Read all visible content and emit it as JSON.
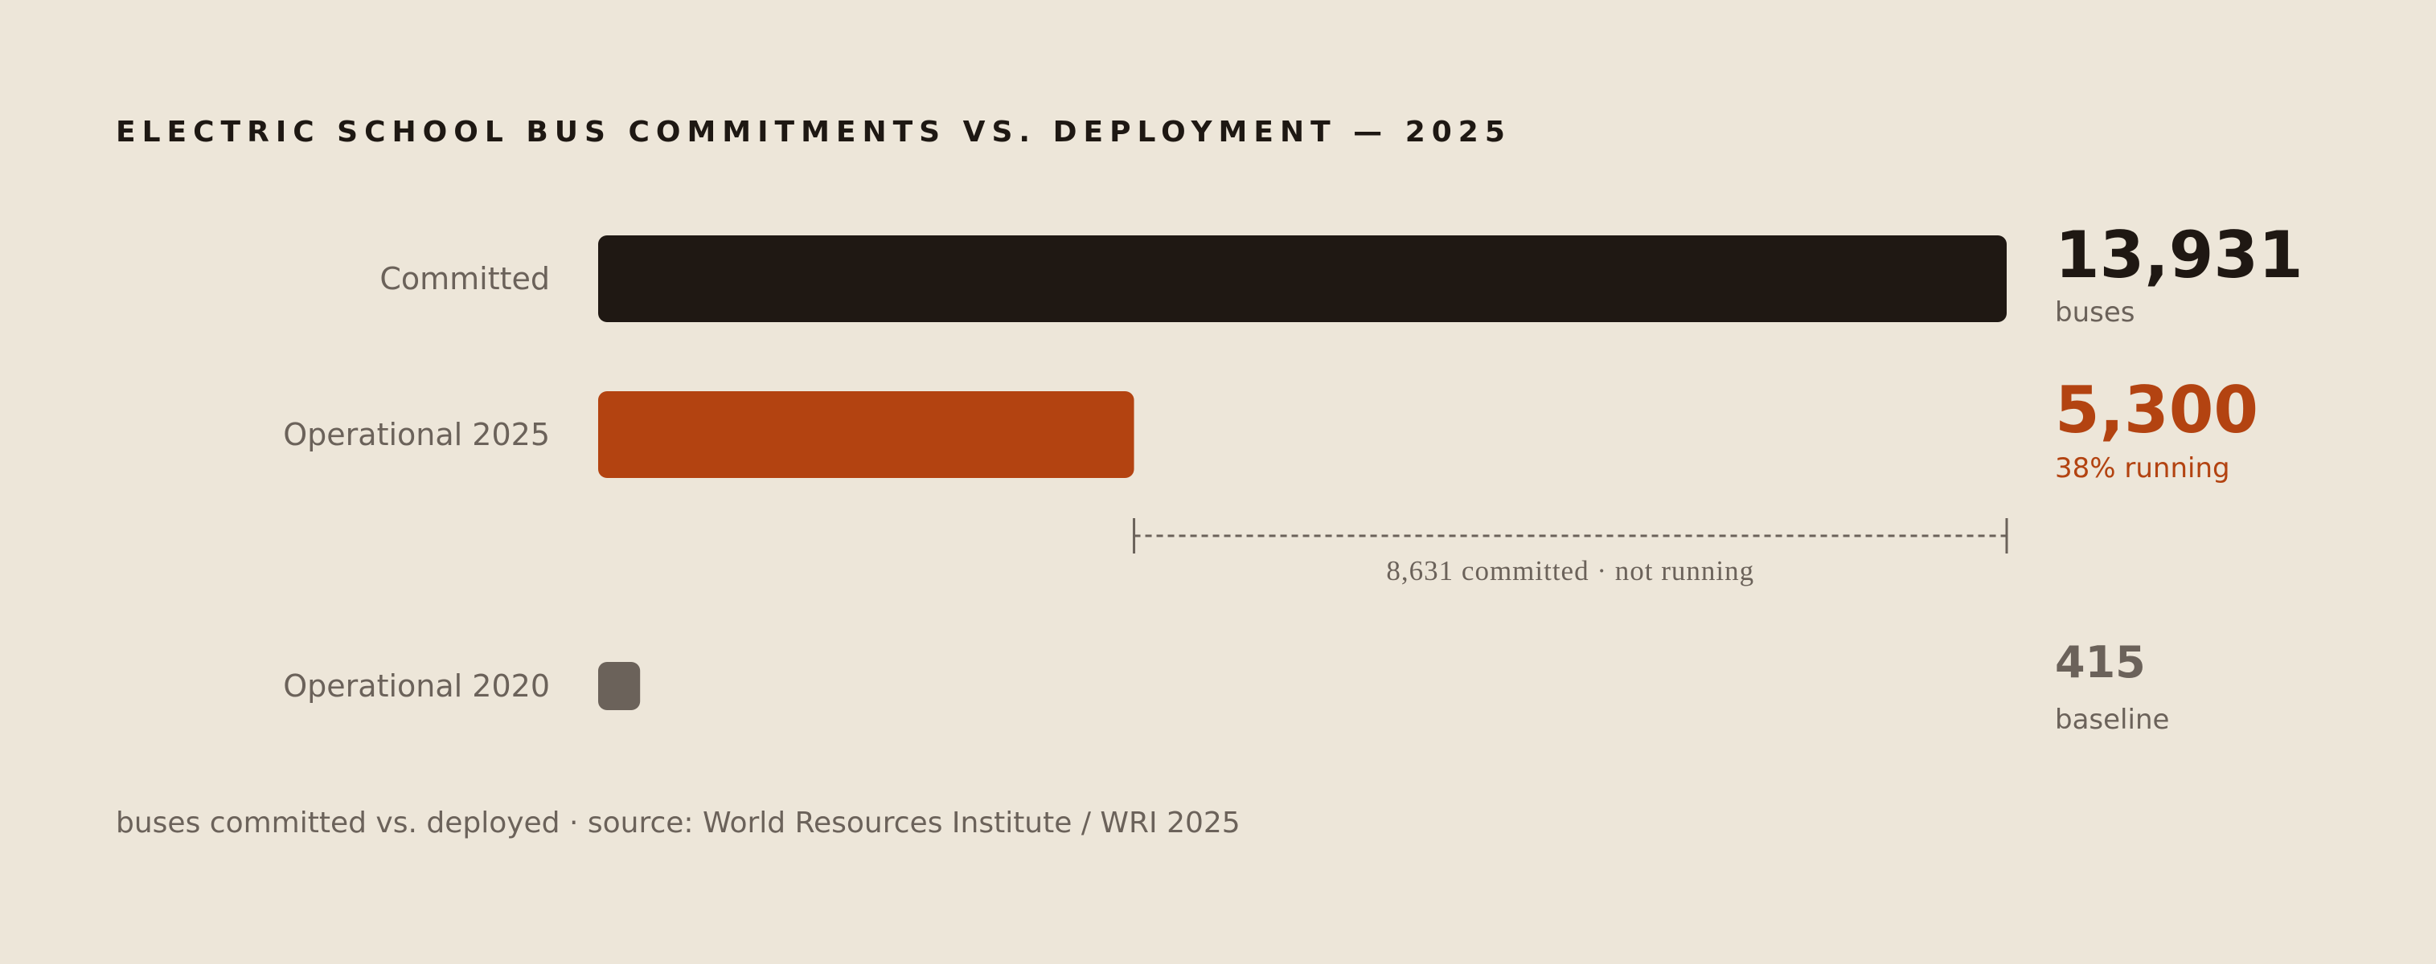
{
  "title": "ELECTRIC SCHOOL BUS COMMITMENTS VS. DEPLOYMENT — 2025",
  "footnote": "buses committed vs. deployed · source: World Resources Institute / WRI 2025",
  "colors": {
    "background": "#ede6d9",
    "committed": "#1f1813",
    "operational_2025": "#b34311",
    "operational_2020": "#6b625a",
    "muted_text": "#6b625a"
  },
  "chart_data": {
    "type": "bar",
    "orientation": "horizontal",
    "title": "ELECTRIC SCHOOL BUS COMMITMENTS VS. DEPLOYMENT — 2025",
    "categories": [
      "Committed",
      "Operational 2025",
      "Operational 2020"
    ],
    "values": [
      13931,
      5300,
      415
    ],
    "value_labels": [
      "13,931",
      "5,300",
      "415"
    ],
    "sub_labels": [
      "buses",
      "38% running",
      "baseline"
    ],
    "gap_annotation": {
      "from": 5300,
      "to": 13931,
      "label": "8,631 committed · not running"
    },
    "xlim": [
      0,
      13931
    ],
    "grid": false
  }
}
